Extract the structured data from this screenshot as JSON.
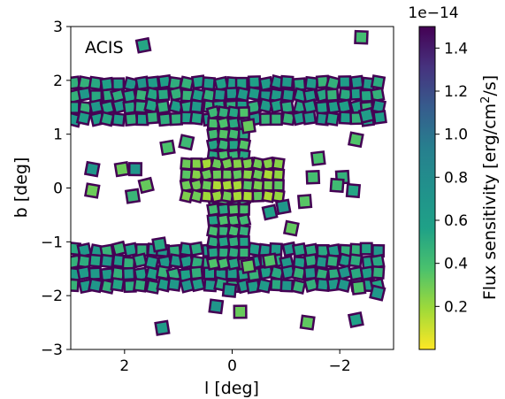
{
  "chart_data": {
    "type": "heatmap",
    "annotation": "ACIS",
    "xlabel": "l [deg]",
    "ylabel": "b [deg]",
    "xlim": [
      3,
      -3
    ],
    "ylim": [
      -3,
      3
    ],
    "xticks": [
      2,
      0,
      -2
    ],
    "xtick_labels": [
      "2",
      "0",
      "−2"
    ],
    "yticks": [
      3,
      2,
      1,
      0,
      -1,
      -2,
      -3
    ],
    "ytick_labels": [
      "3",
      "2",
      "1",
      "0",
      "−1",
      "−2",
      "−3"
    ],
    "colorbar": {
      "label": "Flux sensitivity [erg/cm²/s]",
      "label_main": "Flux sensitivity [erg/cm",
      "label_sup": "2",
      "label_tail": "/s]",
      "offset_text": "1e−14",
      "colormap": "viridis_r",
      "vmin": 0.0,
      "vmax": 1.5,
      "ticks": [
        0.2,
        0.4,
        0.6,
        0.8,
        1.0,
        1.2,
        1.4
      ],
      "tick_labels": [
        "0.2",
        "0.4",
        "0.6",
        "0.8",
        "1.0",
        "1.2",
        "1.4"
      ]
    },
    "regions": [
      {
        "name": "upper strip",
        "l_range": [
          -2.9,
          3.0
        ],
        "b_range": [
          1.05,
          2.0
        ],
        "typical": 0.55
      },
      {
        "name": "lower strip",
        "l_range": [
          -2.9,
          3.0
        ],
        "b_range": [
          -1.95,
          -1.0
        ],
        "typical": 0.55
      },
      {
        "name": "central vertical arm",
        "l_range": [
          -0.5,
          0.5
        ],
        "b_range": [
          -1.6,
          1.5
        ],
        "typical": 0.45
      },
      {
        "name": "central horizontal arm",
        "l_range": [
          -1.1,
          1.0
        ],
        "b_range": [
          -0.3,
          0.55
        ],
        "typical": 0.3
      },
      {
        "name": "scattered pointings",
        "l_range": [
          -2.9,
          2.7
        ],
        "b_range": [
          -2.9,
          2.9
        ],
        "typical": 0.6
      }
    ],
    "grid": false
  }
}
